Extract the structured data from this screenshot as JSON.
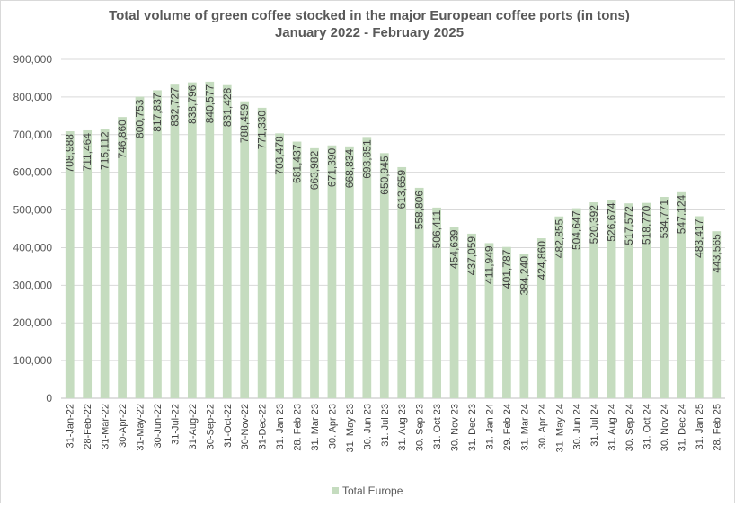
{
  "colors": {
    "bar": "#c5dcbf",
    "grid": "#d9d9d9",
    "axis": "#bfbfbf"
  },
  "chart_data": {
    "type": "bar",
    "title": "Total volume of green coffee stocked in the major European coffee ports (in tons)",
    "subtitle": "January 2022 - February 2025",
    "xlabel": "",
    "ylabel": "",
    "ylim": [
      0,
      900000
    ],
    "yticks": [
      0,
      100000,
      200000,
      300000,
      400000,
      500000,
      600000,
      700000,
      800000,
      900000
    ],
    "ytick_labels": [
      "0",
      "100,000",
      "200,000",
      "300,000",
      "400,000",
      "500,000",
      "600,000",
      "700,000",
      "800,000",
      "900,000"
    ],
    "grid": true,
    "legend_position": "bottom",
    "categories": [
      "31-Jan-22",
      "28-Feb-22",
      "31-Mar-22",
      "30-Apr-22",
      "31-May-22",
      "30-Jun-22",
      "31-Jul-22",
      "31-Aug-22",
      "30-Sep-22",
      "31-Oct-22",
      "30-Nov-22",
      "31-Dec-22",
      "31. Jan 23",
      "28. Feb 23",
      "31. Mar 23",
      "30. Apr 23",
      "31. May 23",
      "30. Jun 23",
      "31. Jul 23",
      "31. Aug 23",
      "30. Sep 23",
      "31. Oct 23",
      "30. Nov 23",
      "31. Dec 23",
      "31. Jan 24",
      "29. Feb 24",
      "31. Mar 24",
      "30. Apr 24",
      "31. May 24",
      "30. Jun 24",
      "31. Jul 24",
      "31. Aug 24",
      "30. Sep 24",
      "31. Oct 24",
      "30. Nov 24",
      "31. Dec 24",
      "31. Jan 25",
      "28. Feb 25"
    ],
    "series": [
      {
        "name": "Total Europe",
        "values": [
          708988,
          711464,
          715112,
          746860,
          800753,
          817837,
          832727,
          838796,
          840577,
          831428,
          788459,
          771330,
          703478,
          681437,
          663982,
          671390,
          668834,
          693851,
          650945,
          613659,
          558806,
          506411,
          454639,
          437059,
          411949,
          401787,
          384240,
          424860,
          482855,
          504647,
          520392,
          526674,
          517572,
          518770,
          534771,
          547124,
          483417,
          443565
        ],
        "data_labels": [
          "708,988",
          "711,464",
          "715,112",
          "746,860",
          "800,753",
          "817,837",
          "832,727",
          "838,796",
          "840,577",
          "831,428",
          "788,459",
          "771,330",
          "703,478",
          "681,437",
          "663,982",
          "671,390",
          "668,834",
          "693,851",
          "650,945",
          "613,659",
          "558,806",
          "506,411",
          "454,639",
          "437,059",
          "411,949",
          "401,787",
          "384,240",
          "424,860",
          "482,855",
          "504,647",
          "520,392",
          "526,674",
          "517,572",
          "518,770",
          "534,771",
          "547,124",
          "483,417",
          "443,565"
        ]
      }
    ]
  }
}
